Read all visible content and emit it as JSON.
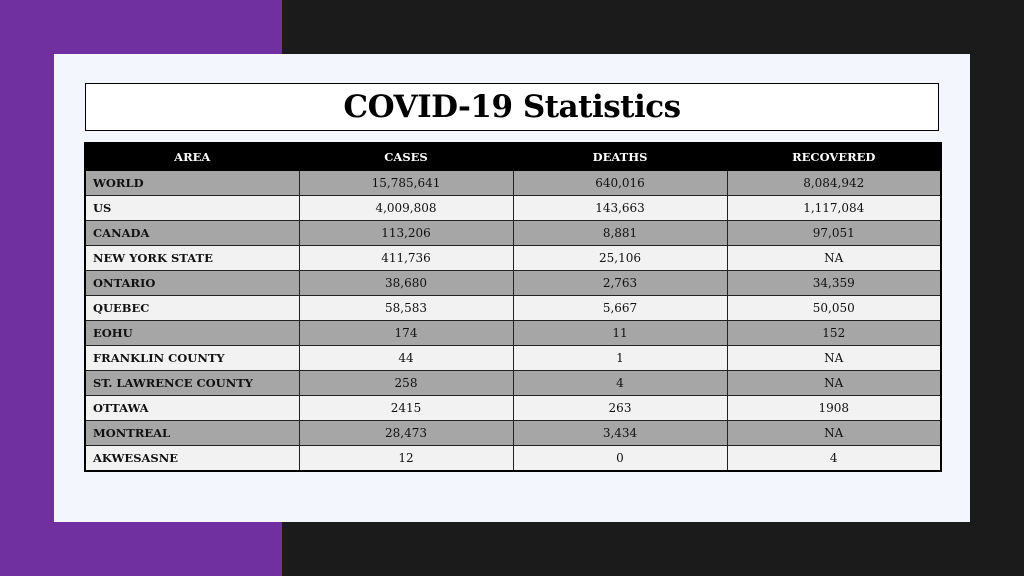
{
  "title": "COVID-19 Statistics",
  "colors": {
    "accent_band": "#7030a0",
    "background": "#1b1b1b",
    "slide": "#f3f6fc",
    "header_row": "#000000",
    "row_shaded": "#a6a6a6",
    "row_light": "#f2f2f2"
  },
  "table": {
    "headers": [
      "AREA",
      "CASES",
      "DEATHS",
      "RECOVERED"
    ],
    "rows": [
      [
        "WORLD",
        "15,785,641",
        "640,016",
        "8,084,942"
      ],
      [
        "US",
        "4,009,808",
        "143,663",
        "1,117,084"
      ],
      [
        "CANADA",
        "113,206",
        "8,881",
        "97,051"
      ],
      [
        "NEW YORK STATE",
        "411,736",
        "25,106",
        "NA"
      ],
      [
        "ONTARIO",
        "38,680",
        "2,763",
        "34,359"
      ],
      [
        "QUEBEC",
        "58,583",
        "5,667",
        "50,050"
      ],
      [
        "EOHU",
        "174",
        "11",
        "152"
      ],
      [
        "FRANKLIN COUNTY",
        "44",
        "1",
        "NA"
      ],
      [
        "ST. LAWRENCE COUNTY",
        "258",
        "4",
        "NA"
      ],
      [
        "OTTAWA",
        "2415",
        "263",
        "1908"
      ],
      [
        "MONTREAL",
        "28,473",
        "3,434",
        "NA"
      ],
      [
        "AKWESASNE",
        "12",
        "0",
        "4"
      ]
    ]
  }
}
